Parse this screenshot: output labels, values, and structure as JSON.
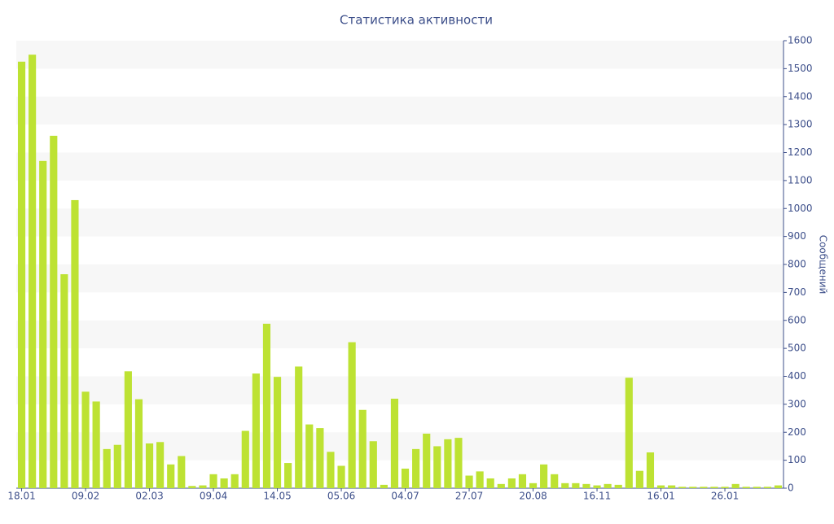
{
  "chart_data": {
    "type": "bar",
    "title": "Статистика активности",
    "y_axis_label": "Сообщений",
    "categories": [
      "18.01",
      null,
      null,
      null,
      null,
      null,
      "09.02",
      null,
      null,
      null,
      null,
      null,
      "02.03",
      null,
      null,
      null,
      null,
      null,
      "09.04",
      null,
      null,
      null,
      null,
      null,
      "14.05",
      null,
      null,
      null,
      null,
      null,
      "05.06",
      null,
      null,
      null,
      null,
      null,
      "04.07",
      null,
      null,
      null,
      null,
      null,
      "27.07",
      null,
      null,
      null,
      null,
      null,
      "20.08",
      null,
      null,
      null,
      null,
      null,
      "16.11",
      null,
      null,
      null,
      null,
      null,
      "16.01",
      null,
      null,
      null,
      null,
      null,
      "26.01",
      null,
      null,
      null,
      null,
      null
    ],
    "values": [
      1525,
      1550,
      1170,
      1260,
      765,
      1030,
      345,
      310,
      140,
      155,
      418,
      318,
      160,
      165,
      85,
      115,
      8,
      10,
      50,
      35,
      50,
      205,
      410,
      588,
      398,
      90,
      435,
      228,
      215,
      130,
      80,
      522,
      280,
      168,
      12,
      320,
      70,
      140,
      195,
      150,
      175,
      180,
      45,
      60,
      35,
      15,
      35,
      50,
      18,
      85,
      50,
      18,
      18,
      15,
      10,
      15,
      12,
      395,
      62,
      128,
      10,
      10,
      5,
      5,
      5,
      5,
      5,
      15,
      5,
      5,
      5,
      10
    ],
    "color": "#bde233",
    "ylim": [
      0,
      1600
    ],
    "yticks": [
      0,
      100,
      200,
      300,
      400,
      500,
      600,
      700,
      800,
      900,
      1000,
      1100,
      1200,
      1300,
      1400,
      1500,
      1600
    ],
    "grid": "bands",
    "y_axis_side": "right"
  }
}
